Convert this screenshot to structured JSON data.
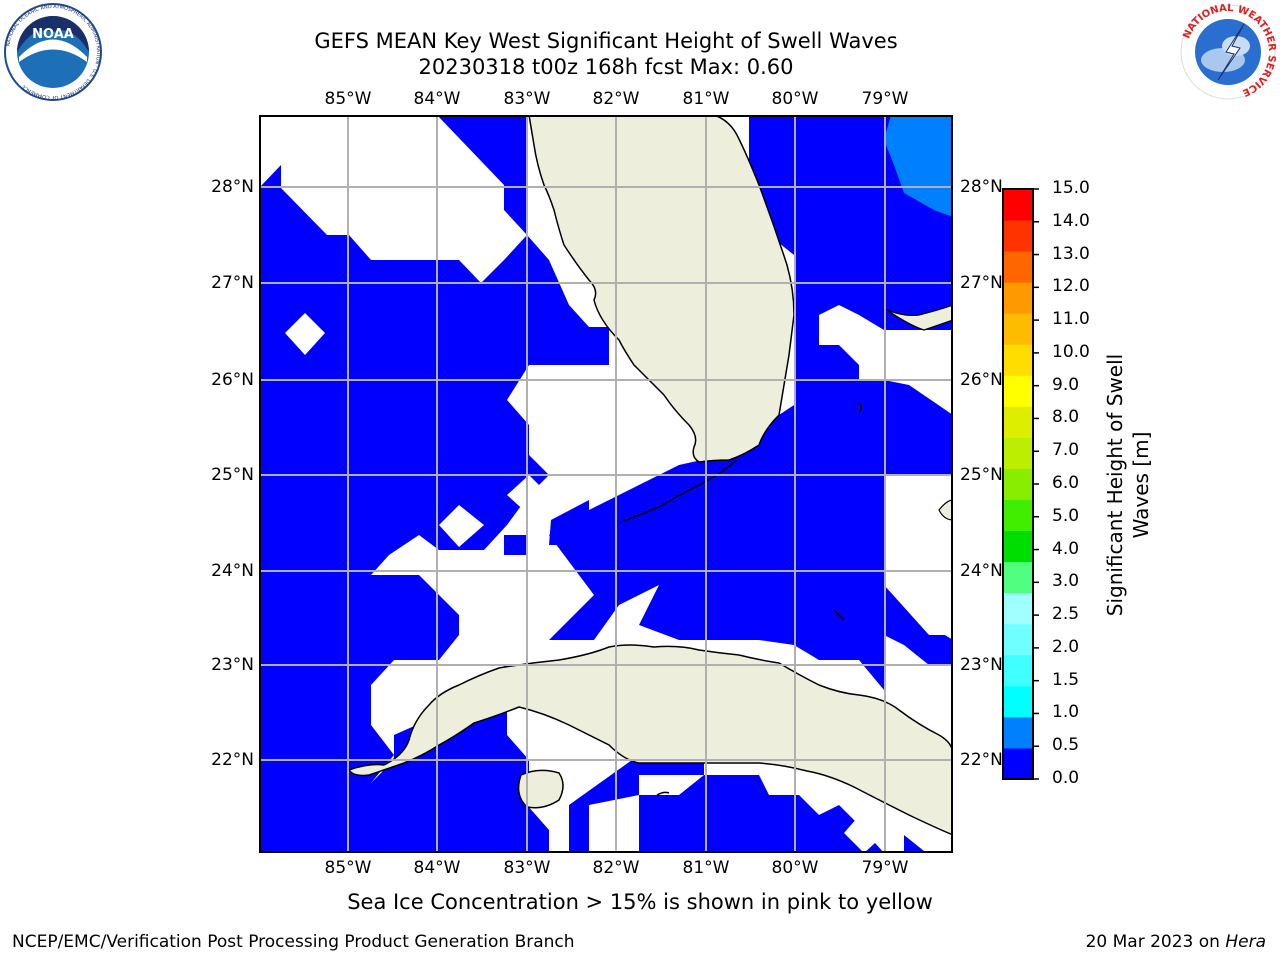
{
  "header": {
    "title_line1": "GEFS MEAN Key West Significant Height of Swell Waves",
    "title_line2": "20230318 t00z 168h fcst   Max: 0.60"
  },
  "logos": {
    "left": "NOAA",
    "left_ring_text": "NATIONAL OCEANIC AND ATMOSPHERIC ADMINISTRATION · U.S. DEPARTMENT OF COMMERCE",
    "right_ring_text": "NATIONAL WEATHER SERVICE"
  },
  "map": {
    "lon_labels": [
      "85°W",
      "84°W",
      "83°W",
      "82°W",
      "81°W",
      "80°W",
      "79°W"
    ],
    "lat_labels": [
      "28°N",
      "27°N",
      "26°N",
      "25°N",
      "24°N",
      "23°N",
      "22°N"
    ],
    "colors": {
      "ocean_low": "#0000ff",
      "ocean_mid": "#0080ff",
      "land": "#eeeedd",
      "no_data": "#ffffff",
      "grid": "#b0b0b0"
    }
  },
  "colorbar": {
    "title": "Significant Height of Swell Waves [m]",
    "ticks": [
      "0.0",
      "0.5",
      "1.0",
      "1.5",
      "2.0",
      "2.5",
      "3.0",
      "4.0",
      "5.0",
      "6.0",
      "7.0",
      "8.0",
      "9.0",
      "10.0",
      "11.0",
      "12.0",
      "13.0",
      "14.0",
      "15.0"
    ],
    "colors": [
      "#0000ff",
      "#0080ff",
      "#00ffff",
      "#40ffff",
      "#70ffff",
      "#a0ffff",
      "#50ff80",
      "#00dd00",
      "#40ee00",
      "#88ee00",
      "#bbee00",
      "#ddee00",
      "#ffff00",
      "#ffdd00",
      "#ffbb00",
      "#ff9900",
      "#ff6600",
      "#ff3300",
      "#ff0000"
    ]
  },
  "footer": {
    "note": "Sea Ice Concentration > 15% is shown in pink to yellow",
    "left": "NCEP/EMC/Verification Post Processing Product Generation Branch",
    "right_date": "20 Mar 2023 on ",
    "right_host": "Hera"
  }
}
